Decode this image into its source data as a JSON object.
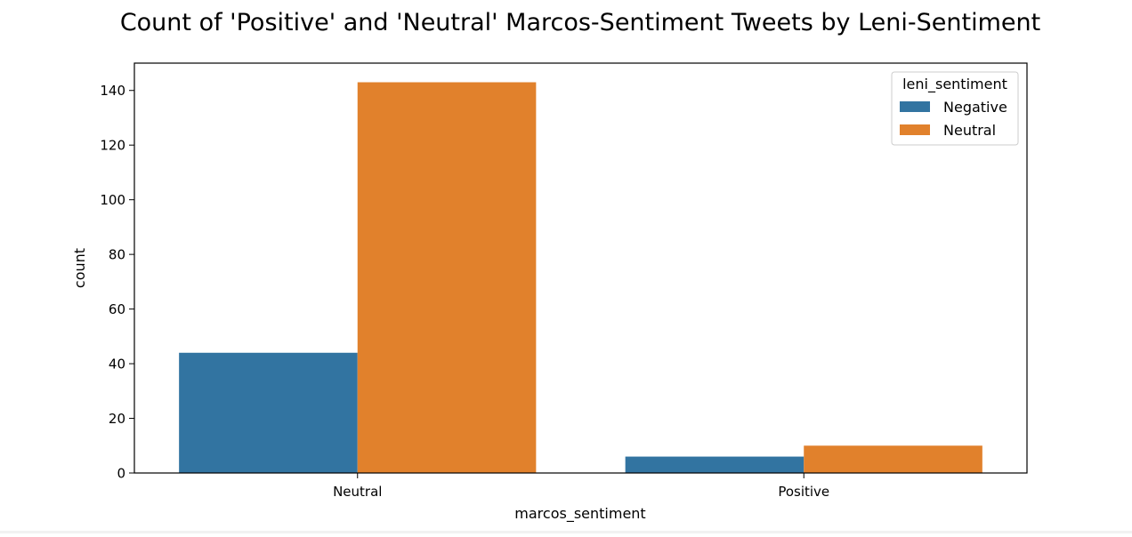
{
  "chart_data": {
    "type": "bar",
    "title": "Count of 'Positive' and 'Neutral' Marcos-Sentiment Tweets by Leni-Sentiment",
    "xlabel": "marcos_sentiment",
    "ylabel": "count",
    "categories": [
      "Neutral",
      "Positive"
    ],
    "series": [
      {
        "name": "Negative",
        "color": "#3274a1",
        "values": [
          44,
          6
        ]
      },
      {
        "name": "Neutral",
        "color": "#e1812c",
        "values": [
          143,
          10
        ]
      }
    ],
    "ylim": [
      0,
      150
    ],
    "yticks": [
      0,
      20,
      40,
      60,
      80,
      100,
      120,
      140
    ],
    "legend": {
      "title": "leni_sentiment",
      "placement": "top-right"
    },
    "grid": false
  }
}
